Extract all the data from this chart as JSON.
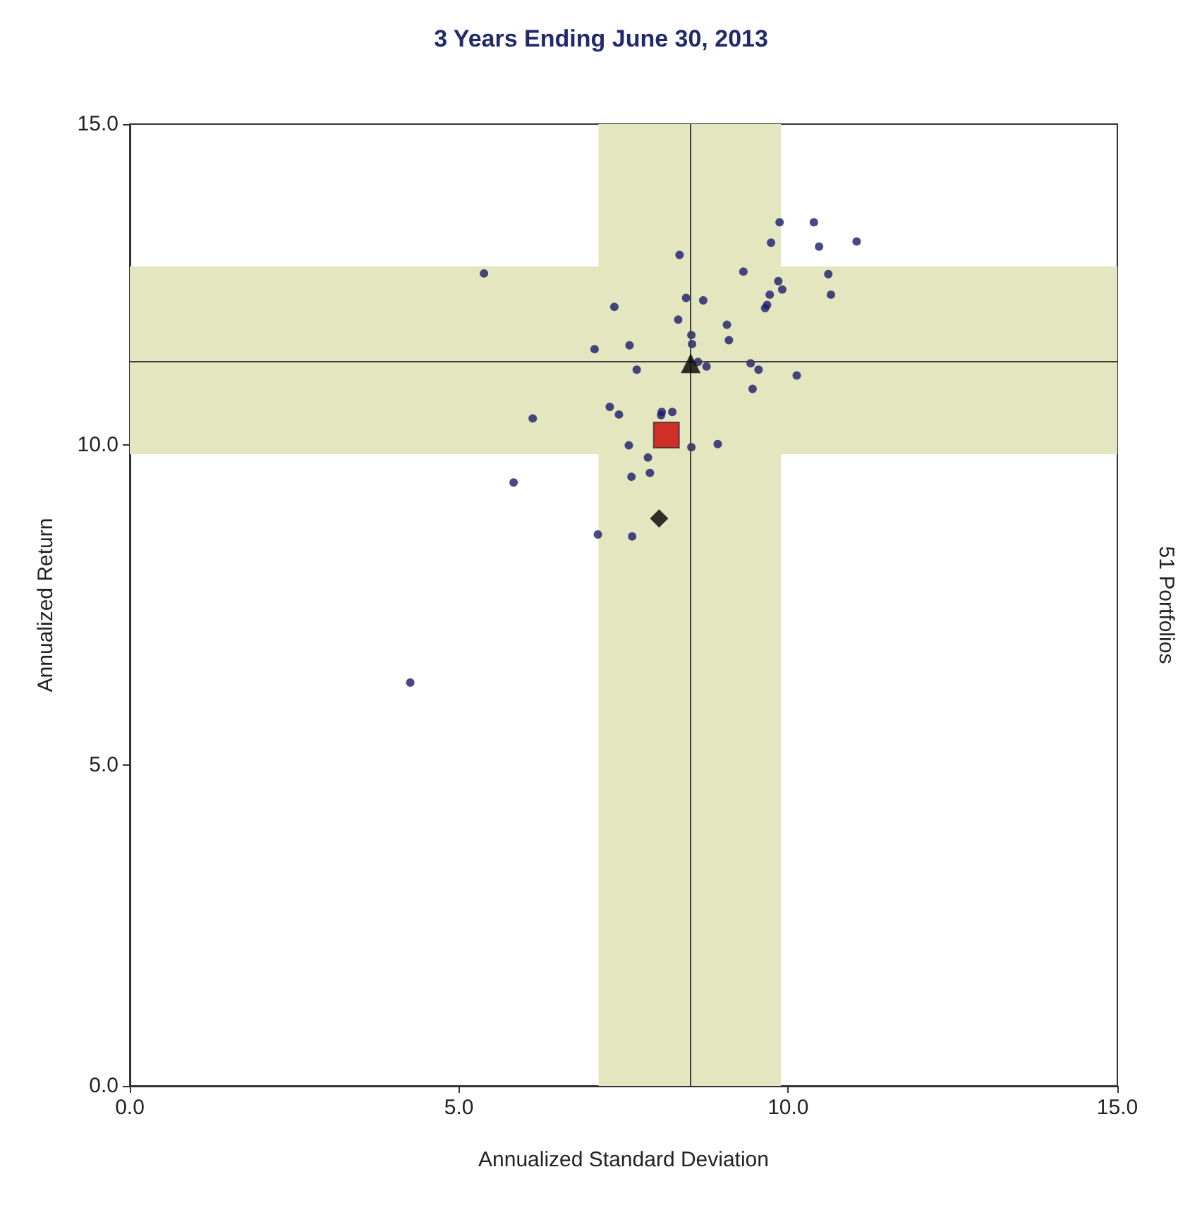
{
  "chart_data": {
    "type": "scatter",
    "title": "3 Years Ending June 30, 2013",
    "xlabel": "Annualized Standard Deviation",
    "ylabel": "Annualized Return",
    "annotations": [
      "51 Portfolios"
    ],
    "xlim": [
      0,
      15
    ],
    "ylim": [
      0,
      15
    ],
    "xticks": [
      {
        "value": 0,
        "label": "0.0"
      },
      {
        "value": 5,
        "label": "5.0"
      },
      {
        "value": 10,
        "label": "10.0"
      },
      {
        "value": 15,
        "label": "15.0"
      }
    ],
    "yticks": [
      {
        "value": 0,
        "label": "0.0"
      },
      {
        "value": 5,
        "label": "5.0"
      },
      {
        "value": 10,
        "label": "10.0"
      },
      {
        "value": 15,
        "label": "15.0"
      }
    ],
    "grid": false,
    "bands": [
      {
        "axis": "x",
        "from": 7.12,
        "to": 9.89,
        "color": "#e4e6c0"
      },
      {
        "axis": "y",
        "from": 9.85,
        "to": 12.78,
        "color": "#e4e6c0"
      }
    ],
    "ref_lines": [
      {
        "axis": "x",
        "value": 8.52,
        "color": "#404040"
      },
      {
        "axis": "y",
        "value": 11.3,
        "color": "#404040"
      }
    ],
    "series": [
      {
        "color": "#1c1c6b",
        "marker": "circle",
        "x": [
          9.87,
          10.39,
          9.74,
          10.47,
          11.04,
          8.35,
          5.38,
          9.32,
          10.61,
          9.85,
          9.91,
          9.72,
          10.65,
          8.45,
          8.71,
          9.68,
          9.65,
          7.36,
          8.33,
          9.07,
          8.53,
          9.1,
          8.54,
          7.59,
          7.06,
          7.7,
          8.63,
          8.76,
          9.43,
          9.55,
          10.13,
          9.46,
          6.12,
          7.29,
          7.43,
          8.08,
          8.07,
          8.24,
          7.58,
          8.53,
          8.93,
          7.87,
          7.9,
          7.62,
          5.83,
          7.11,
          7.63,
          4.26
        ],
        "values": [
          13.47,
          13.47,
          13.15,
          13.09,
          13.17,
          12.96,
          12.67,
          12.7,
          12.66,
          12.55,
          12.42,
          12.34,
          12.34,
          12.29,
          12.25,
          12.18,
          12.13,
          12.15,
          11.95,
          11.87,
          11.71,
          11.63,
          11.57,
          11.55,
          11.49,
          11.17,
          11.29,
          11.22,
          11.27,
          11.17,
          11.08,
          10.87,
          10.41,
          10.59,
          10.47,
          10.51,
          10.46,
          10.51,
          9.99,
          9.96,
          10.01,
          9.8,
          9.56,
          9.5,
          9.41,
          8.6,
          8.57,
          6.29
        ]
      },
      {
        "color": "#cc0000",
        "marker": "square",
        "x": [
          8.15
        ],
        "values": [
          10.15
        ]
      },
      {
        "color": "#000000",
        "marker": "triangle",
        "x": [
          8.52
        ],
        "values": [
          11.27
        ]
      },
      {
        "color": "#000000",
        "marker": "diamond",
        "x": [
          8.04
        ],
        "values": [
          8.85
        ]
      }
    ]
  }
}
